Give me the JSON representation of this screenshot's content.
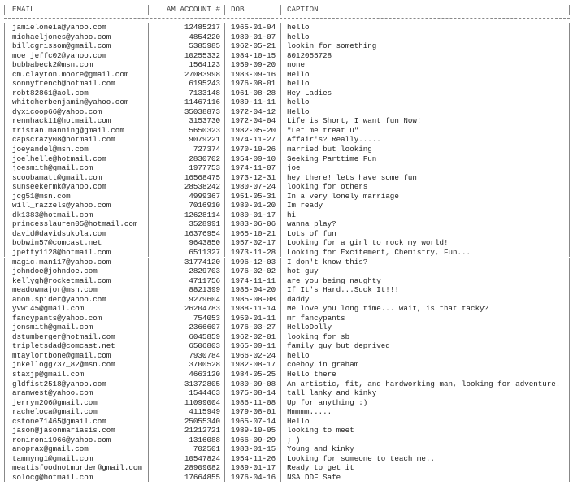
{
  "table": {
    "columns": [
      "EMAIL",
      "AM ACCOUNT #",
      "DOB",
      "CAPTION"
    ],
    "rows": [
      [
        "jamieloneia@yahoo.com",
        "12485217",
        "1965-01-04",
        "hello"
      ],
      [
        "michaeljones@yahoo.com",
        "4854220",
        "1980-01-07",
        "hello"
      ],
      [
        "billcgrissom@gmail.com",
        "5385985",
        "1962-05-21",
        "lookin for something"
      ],
      [
        "moe_jeffc02@yahoo.com",
        "10255332",
        "1984-10-15",
        "8012055728"
      ],
      [
        "bubbabeck2@msn.com",
        "1564123",
        "1959-09-20",
        "none"
      ],
      [
        "cm.clayton.moore@gmail.com",
        "27083998",
        "1983-09-16",
        "Hello"
      ],
      [
        "sonnyfrench@hotmail.com",
        "6195243",
        "1976-08-01",
        "hello"
      ],
      [
        "robt82861@aol.com",
        "7133148",
        "1961-08-28",
        "Hey Ladies"
      ],
      [
        "whitcherbenjamin@yahoo.com",
        "11467116",
        "1989-11-11",
        "hello"
      ],
      [
        "dyxicoop66@yahoo.com",
        "35038873",
        "1972-04-12",
        "Hello"
      ],
      [
        "rennhack11@hotmail.com",
        "3153730",
        "1972-04-04",
        "Life is Short, I want fun Now!"
      ],
      [
        "tristan.manning@gmail.com",
        "5650323",
        "1982-05-20",
        "\"Let me treat u\""
      ],
      [
        "capscrazy08@hotmail.com",
        "9079221",
        "1974-11-27",
        "Affair's? Really....."
      ],
      [
        "joeyandel@msn.com",
        "727374",
        "1970-10-26",
        "married but looking"
      ],
      [
        "joelhelle@hotmail.com",
        "2830702",
        "1954-09-10",
        "Seeking Parttime Fun"
      ],
      [
        "joesmith@gmail.com",
        "1977753",
        "1974-11-07",
        "joe"
      ],
      [
        "scoobamatt@gmail.com",
        "16568475",
        "1973-12-31",
        "hey there! lets have some fun"
      ],
      [
        "sunseekermk@yahoo.com",
        "28538242",
        "1980-07-24",
        "looking for others"
      ],
      [
        "jcg51@msn.com",
        "4999367",
        "1951-05-31",
        "In a very lonely marriage"
      ],
      [
        "will_razzels@yahoo.com",
        "7016910",
        "1980-01-20",
        "Im ready"
      ],
      [
        "dk1383@hotmail.com",
        "12628114",
        "1980-01-17",
        "hi"
      ],
      [
        "princesslauren05@hotmail.com",
        "3528991",
        "1983-06-06",
        "wanna play?"
      ],
      [
        "david@davidsukola.com",
        "16376954",
        "1965-10-21",
        "Lots of fun"
      ],
      [
        "bobwin57@comcast.net",
        "9643850",
        "1957-02-17",
        "Looking for a girl to rock my world!"
      ],
      [
        "jpetty1128@hotmail.com",
        "6511327",
        "1973-11-28",
        "Looking for Excitement, Chemistry, Fun..."
      ],
      [
        "magic.man117@yahoo.com",
        "31774120",
        "1996-12-03",
        "I don't know this?"
      ],
      [
        "johndoe@johndoe.com",
        "2829703",
        "1976-02-02",
        "hot guy"
      ],
      [
        "kellygh@rocketmail.com",
        "4711756",
        "1974-11-11",
        "are you being naughty"
      ],
      [
        "meadowmajor@msn.com",
        "8821399",
        "1985-04-20",
        "If It's Hard...Suck It!!!"
      ],
      [
        "anon.spider@yahoo.com",
        "9279604",
        "1985-08-08",
        "daddy"
      ],
      [
        "yvw145@gmail.com",
        "26204783",
        "1988-11-14",
        "Me love you long time... wait, is that tacky?"
      ],
      [
        "fancypants@yahoo.com",
        "754053",
        "1950-01-11",
        "mr fancypants"
      ],
      [
        "jonsmith@gmail.com",
        "2366607",
        "1976-03-27",
        "HelloDolly"
      ],
      [
        "dstumberger@hotmail.com",
        "6045859",
        "1962-02-01",
        "looking for sb"
      ],
      [
        "tripletsdad@comcast.net",
        "6506803",
        "1965-09-11",
        "family guy but deprived"
      ],
      [
        "mtaylortbone@gmail.com",
        "7930784",
        "1966-02-24",
        "hello"
      ],
      [
        "jnkellogg737_82@msn.com",
        "3700528",
        "1982-08-17",
        "coeboy in graham"
      ],
      [
        "staxjp@gmail.com",
        "4663120",
        "1984-05-25",
        "Hello there"
      ],
      [
        "gldfist2518@yahoo.com",
        "31372805",
        "1980-09-08",
        "An artistic, fit, and hardworking man, looking for adventure."
      ],
      [
        "aramwest@yahoo.com",
        "1544463",
        "1975-08-14",
        "tall lanky and kinky"
      ],
      [
        "jerryn206@gmail.com",
        "11099004",
        "1986-11-08",
        "Up for anything :)"
      ],
      [
        "racheloca@gmail.com",
        "4115949",
        "1979-08-01",
        "Hmmmm....."
      ],
      [
        "cstone71465@gmail.com",
        "25055340",
        "1965-07-14",
        "Hello"
      ],
      [
        "jason@jasonmariasis.com",
        "21212721",
        "1989-10-05",
        "looking to meet"
      ],
      [
        "ronironi1966@yahoo.com",
        "1316088",
        "1966-09-29",
        "; )"
      ],
      [
        "anoprax@gmail.com",
        "702501",
        "1983-01-15",
        "Young and kinky"
      ],
      [
        "tammymg1@gmail.com",
        "10547824",
        "1954-11-26",
        "Looking for someone to teach me.."
      ],
      [
        "meatisfoodnotmurder@gmail.com",
        "28909082",
        "1989-01-17",
        "Ready to get it"
      ],
      [
        "solocg@hotmail.com",
        "17664855",
        "1976-04-16",
        "NSA DDF Safe"
      ]
    ]
  }
}
